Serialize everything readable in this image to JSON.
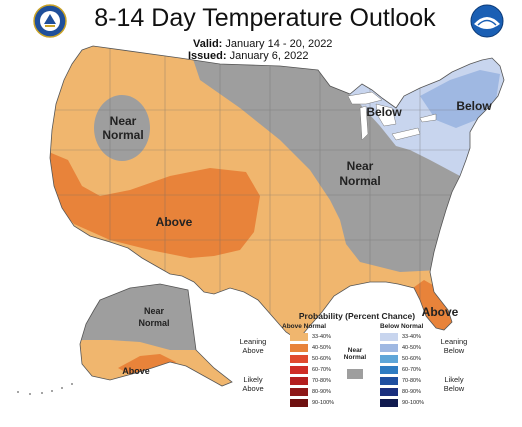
{
  "title": "8-14 Day Temperature Outlook",
  "valid_label": "Valid:",
  "valid_value": "January 14 - 20, 2022",
  "issued_label": "Issued:",
  "issued_value": "January 6, 2022",
  "map_labels": {
    "near_normal_west": [
      "Near",
      "Normal"
    ],
    "near_normal_central": [
      "Near",
      "Normal"
    ],
    "above_southwest": "Above",
    "below_greatlakes": "Below",
    "below_northeast": "Below",
    "above_florida": "Above",
    "near_normal_alaska": [
      "Near",
      "Normal"
    ],
    "above_alaska": "Above"
  },
  "legend": {
    "title": "Probability (Percent Chance)",
    "above_header": "Above Normal",
    "below_header": "Below Normal",
    "near_label": [
      "Near",
      "Normal"
    ],
    "leaning_above": [
      "Leaning",
      "Above"
    ],
    "likely_above": [
      "Likely",
      "Above"
    ],
    "leaning_below": [
      "Leaning",
      "Below"
    ],
    "likely_below": [
      "Likely",
      "Below"
    ],
    "ranges": [
      "33-40%",
      "40-50%",
      "50-60%",
      "60-70%",
      "70-80%",
      "80-90%",
      "90-100%"
    ],
    "above_colors": [
      "#f0b66e",
      "#e8833a",
      "#e04a2e",
      "#cf2d26",
      "#b41f1f",
      "#8e1818",
      "#6e1010"
    ],
    "below_colors": [
      "#c8d5ee",
      "#9fb8e2",
      "#5fa6d8",
      "#2f7cc2",
      "#1f4fa0",
      "#1a2f7e",
      "#101a4e"
    ],
    "near_color": "#9e9e9e"
  },
  "colors": {
    "above_33_40": "#f0b66e",
    "above_40_50": "#e8833a",
    "below_33_40": "#c8d5ee",
    "below_40_50": "#9fb8e2",
    "near_normal": "#9e9e9e"
  },
  "logos": {
    "left": "noaa-commerce-seal",
    "right": "noaa-logo"
  }
}
